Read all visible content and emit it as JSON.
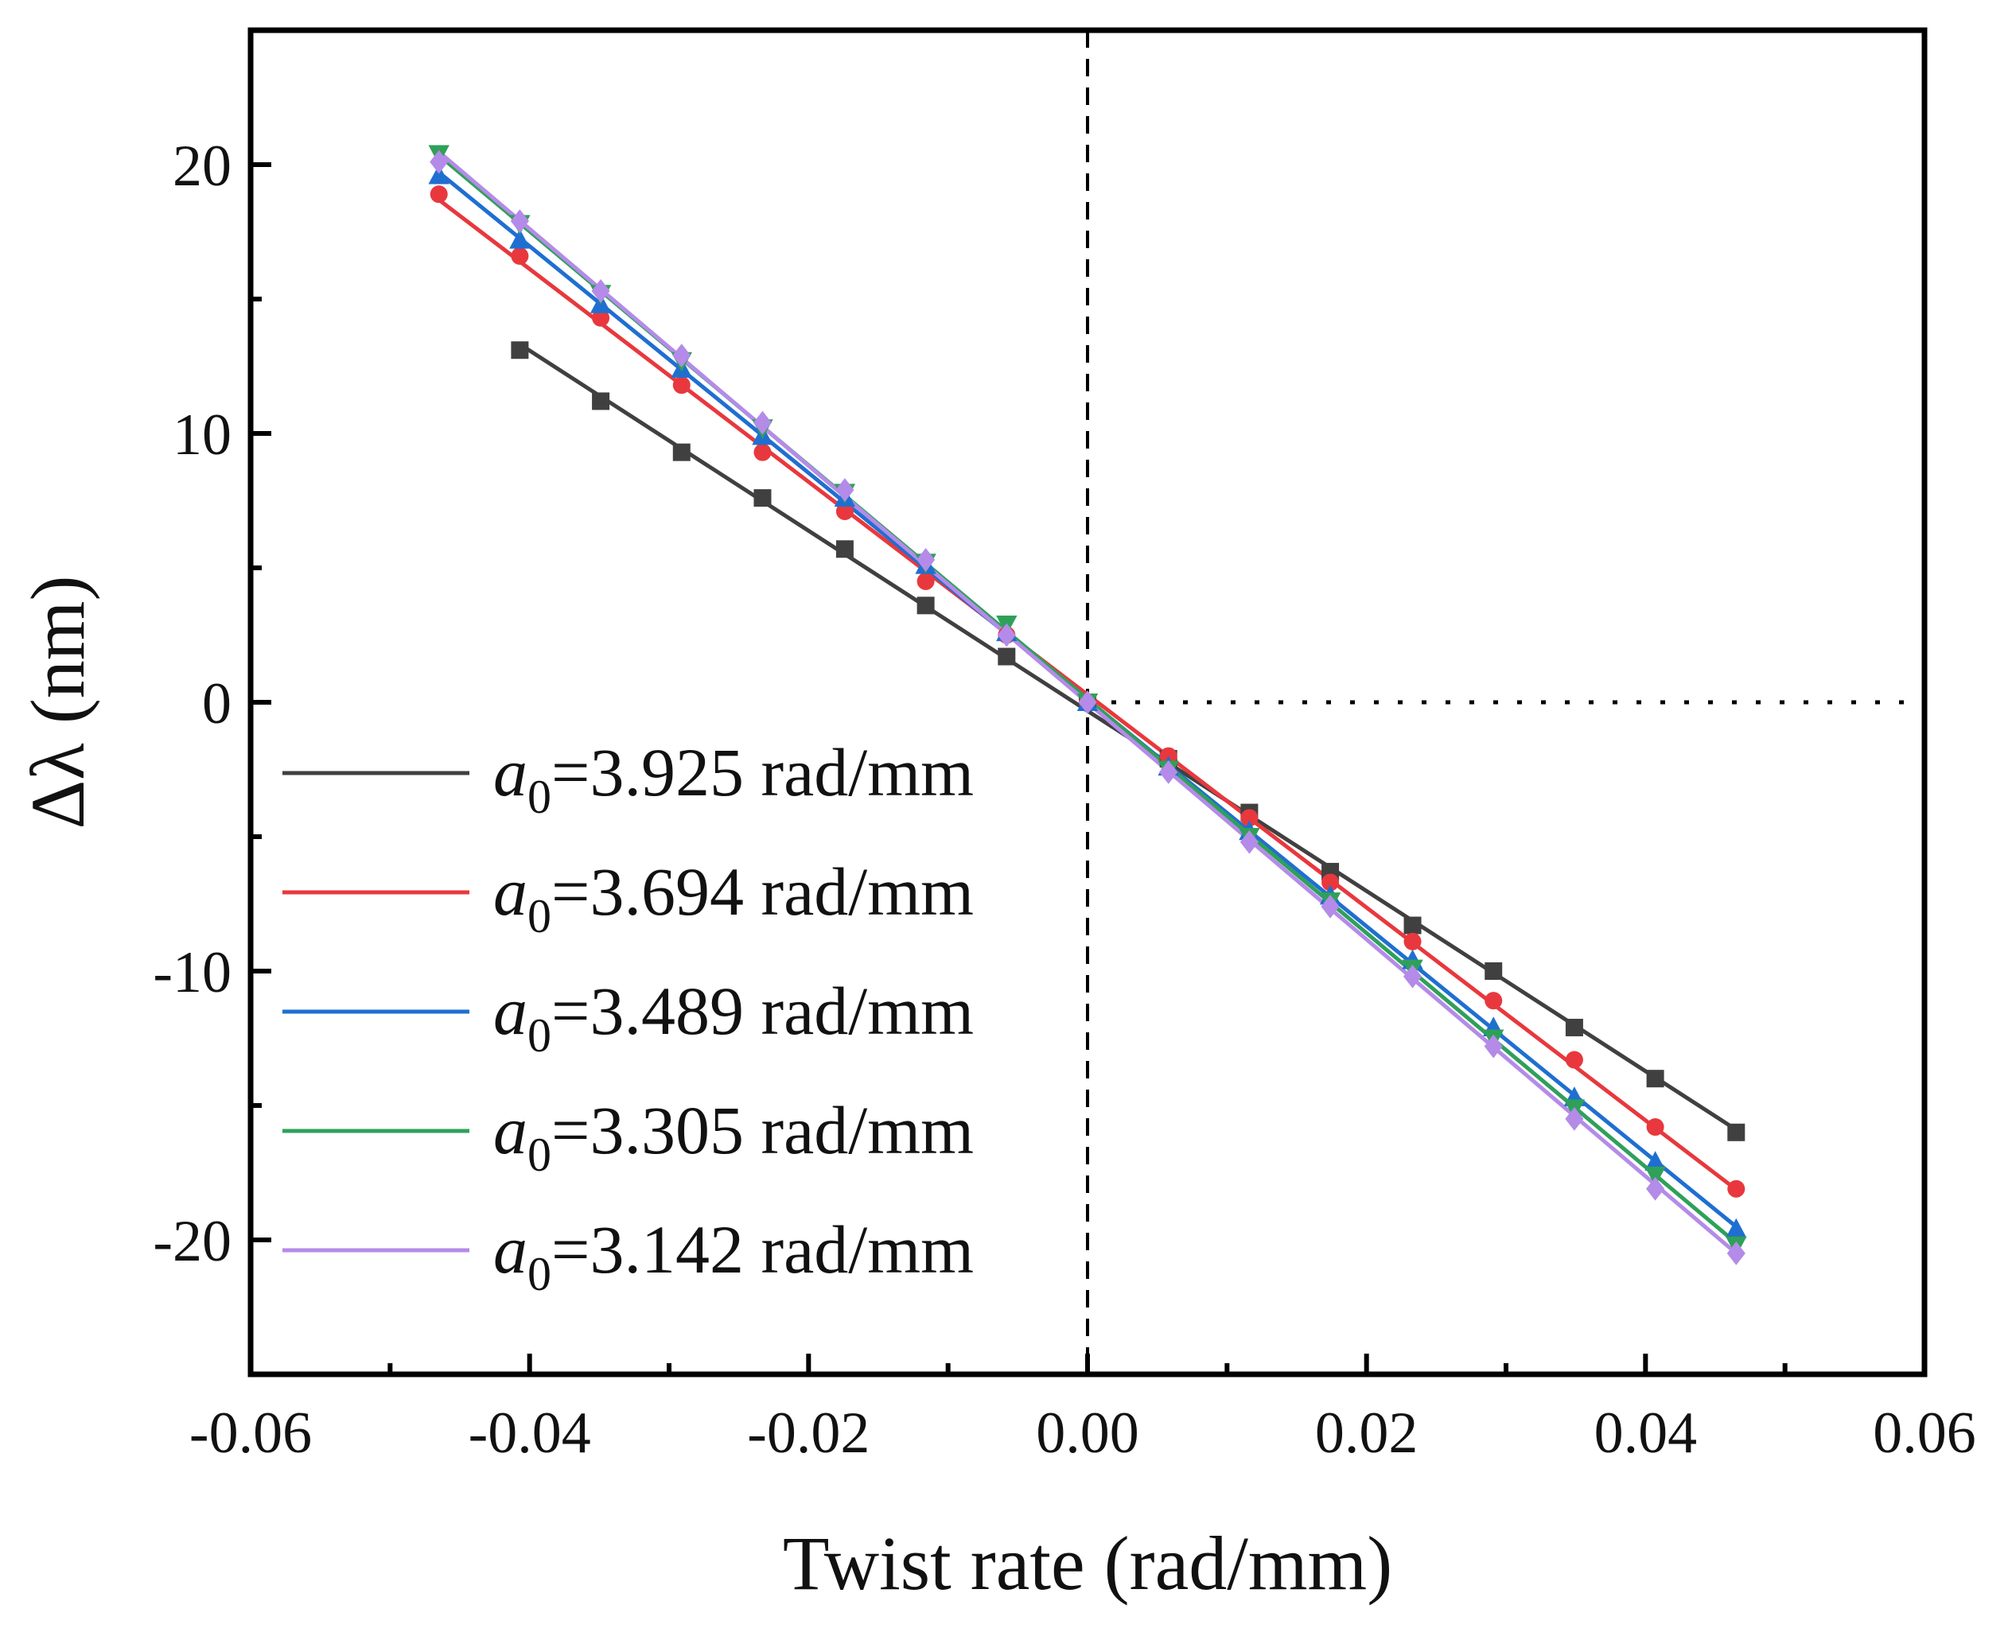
{
  "chart_data": {
    "type": "line",
    "xlabel": "Twist rate (rad/mm)",
    "ylabel": "Δλ (nm)",
    "xlim": [
      -0.06,
      0.06
    ],
    "ylim": [
      -25,
      25
    ],
    "xticks": [
      -0.06,
      -0.04,
      -0.02,
      0.0,
      0.02,
      0.04,
      0.06
    ],
    "xtick_labels": [
      "-0.06",
      "-0.04",
      "-0.02",
      "0.00",
      "0.02",
      "0.04",
      "0.06"
    ],
    "yticks": [
      -20,
      -10,
      0,
      10,
      20
    ],
    "ytick_labels": [
      "-20",
      "-10",
      "0",
      "10",
      "20"
    ],
    "reference_lines": [
      "vertical dashed at x=0",
      "horizontal dotted at y=0"
    ],
    "legend_position": "left",
    "series": [
      {
        "name": "a0=3.925 rad/mm",
        "legend_prefix": "a",
        "legend_sub": "0",
        "legend_value": "=3.925 rad/mm",
        "color": "#404040",
        "marker": "square",
        "x": [
          -0.0407,
          -0.0349,
          -0.0291,
          -0.0233,
          -0.0174,
          -0.0116,
          -0.0058,
          0.0,
          0.0058,
          0.0116,
          0.0174,
          0.0233,
          0.0291,
          0.0349,
          0.0407,
          0.0465
        ],
        "y": [
          13.1,
          11.2,
          9.3,
          7.6,
          5.7,
          3.6,
          1.7,
          0.0,
          -2.1,
          -4.1,
          -6.3,
          -8.3,
          -10.0,
          -12.1,
          -14.0,
          -16.0
        ]
      },
      {
        "name": "a0=3.694 rad/mm",
        "legend_prefix": "a",
        "legend_sub": "0",
        "legend_value": "=3.694 rad/mm",
        "color": "#e8383d",
        "marker": "circle",
        "x": [
          -0.0465,
          -0.0407,
          -0.0349,
          -0.0291,
          -0.0233,
          -0.0174,
          -0.0116,
          -0.0058,
          0.0,
          0.0058,
          0.0116,
          0.0174,
          0.0233,
          0.0291,
          0.0349,
          0.0407,
          0.0465
        ],
        "y": [
          18.9,
          16.6,
          14.3,
          11.8,
          9.3,
          7.1,
          4.5,
          2.5,
          0.0,
          -2.0,
          -4.3,
          -6.7,
          -8.9,
          -11.1,
          -13.3,
          -15.8,
          -18.1
        ]
      },
      {
        "name": "a0=3.489 rad/mm",
        "legend_prefix": "a",
        "legend_sub": "0",
        "legend_value": "=3.489 rad/mm",
        "color": "#1f6fd1",
        "marker": "triangle",
        "x": [
          -0.0465,
          -0.0407,
          -0.0349,
          -0.0291,
          -0.0233,
          -0.0174,
          -0.0116,
          -0.0058,
          0.0,
          0.0058,
          0.0116,
          0.0174,
          0.0233,
          0.0291,
          0.0349,
          0.0407,
          0.0465
        ],
        "y": [
          19.6,
          17.2,
          14.8,
          12.4,
          9.9,
          7.6,
          5.1,
          2.6,
          0.0,
          -2.4,
          -4.8,
          -7.2,
          -9.6,
          -12.1,
          -14.7,
          -17.1,
          -19.6
        ]
      },
      {
        "name": "a0=3.305 rad/mm",
        "legend_prefix": "a",
        "legend_sub": "0",
        "legend_value": "=3.305 rad/mm",
        "color": "#2fa05a",
        "marker": "inverted-triangle",
        "x": [
          -0.0465,
          -0.0407,
          -0.0349,
          -0.0291,
          -0.0233,
          -0.0174,
          -0.0116,
          -0.0058,
          0.0,
          0.0058,
          0.0116,
          0.0174,
          0.0233,
          0.0291,
          0.0349,
          0.0407,
          0.0465
        ],
        "y": [
          20.4,
          17.8,
          15.2,
          12.7,
          10.2,
          7.8,
          5.2,
          2.9,
          0.0,
          -2.5,
          -5.0,
          -7.4,
          -9.9,
          -12.5,
          -15.1,
          -17.6,
          -20.2
        ]
      },
      {
        "name": "a0=3.142 rad/mm",
        "legend_prefix": "a",
        "legend_sub": "0",
        "legend_value": "=3.142 rad/mm",
        "color": "#b48be8",
        "marker": "diamond",
        "x": [
          -0.0465,
          -0.0407,
          -0.0349,
          -0.0291,
          -0.0233,
          -0.0174,
          -0.0116,
          -0.0058,
          0.0,
          0.0058,
          0.0116,
          0.0174,
          0.0233,
          0.0291,
          0.0349,
          0.0407,
          0.0465
        ],
        "y": [
          20.1,
          17.9,
          15.3,
          12.9,
          10.4,
          7.9,
          5.3,
          2.5,
          0.0,
          -2.6,
          -5.2,
          -7.6,
          -10.2,
          -12.8,
          -15.5,
          -18.1,
          -20.5
        ]
      }
    ]
  }
}
